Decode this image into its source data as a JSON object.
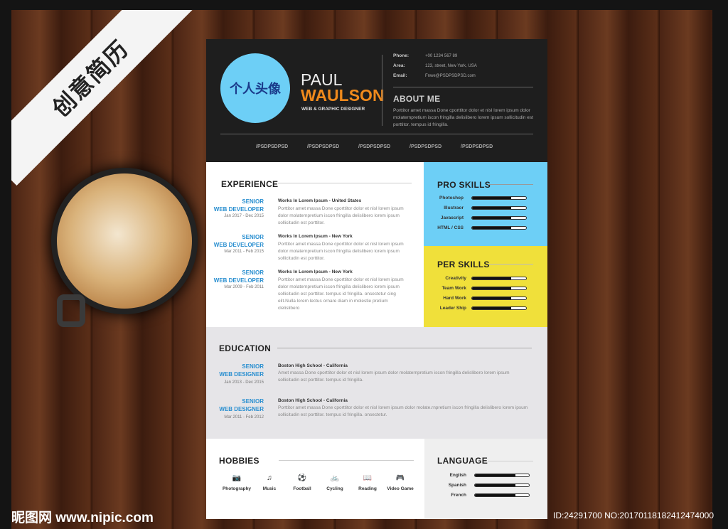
{
  "banner": "创意简历",
  "watermark": "昵图网 www.nipic.com",
  "image_id": "ID:24291700 NO:20170118182412474000",
  "colors": {
    "header": "#1e1e1e",
    "accent_orange": "#f08a1c",
    "accent_blue": "#6dcff6",
    "accent_yellow": "#f0e03a",
    "education_bg": "#e6e5e8"
  },
  "header": {
    "avatar": "个人头像",
    "first_name": "PAUL",
    "last_name": "WAULSON",
    "role": "WEB & GRAPHIC DESIGNER",
    "contacts": [
      {
        "k": "Phone:",
        "v": "+00 1234 567 89"
      },
      {
        "k": "Area:",
        "v": "123, street, New York, USA"
      },
      {
        "k": "Email:",
        "v": "Fnwe@PSDPSDPSD.com"
      }
    ],
    "about_title": "ABOUT ME",
    "about_text": "Porttitor amet massa Done cporttitor dolor et nisl lorem ipsum dolor molaternpretium iscon fringilla delislibero lorem ipsum sollicitudin est porttitor. tempus id fringilla.",
    "social": [
      "/PSDPSDPSD",
      "/PSDPSDPSD",
      "/PSDPSDPSD",
      "/PSDPSDPSD",
      "/PSDPSDPSD"
    ]
  },
  "experience": {
    "title": "EXPERIENCE",
    "items": [
      {
        "p1": "SENIOR",
        "p2": "WEB DEVELOPER",
        "date": "Jan 2017 - Dec 2015",
        "job": "Works In Lorem Ipsum - United States",
        "text": "Porttitor amet massa Done cporttitor dolor et nisl lorem ipsum dolor molaternpretium iscon fringilla delislibero lorem ipsum sollicitudin est porttitor."
      },
      {
        "p1": "SENIOR",
        "p2": "WEB DEVELOPER",
        "date": "Mar 2011 - Feb 2015",
        "job": "Works In Lorem Ipsum - New York",
        "text": "Porttitor amet massa Done cporttitor dolor et nisl lorem ipsum dolor molaternpretium iscon fringilla delislibero lorem ipsum sollicitudin est porttitor."
      },
      {
        "p1": "SENIOR",
        "p2": "WEB DEVELOPER",
        "date": "Mar 2009 - Feb 2011",
        "job": "Works In Lorem Ipsum - New York",
        "text": "Porttitor amet massa Done cporttitor dolor et nisl lorem ipsum dolor molaternpretium iscon fringilla delislibero lorem ipsum sollicitudin est porttitor. tempus id fringilla. onsectetur cing elit.Nulla lorem lectus ornare diam in molestie pretium clelislibero"
      }
    ]
  },
  "pro_skills": {
    "title": "PRO SKILLS",
    "items": [
      {
        "name": "Photoshop",
        "level": 0.72
      },
      {
        "name": "Illustraor",
        "level": 0.72
      },
      {
        "name": "Javascript",
        "level": 0.72
      },
      {
        "name": "HTML / CSS",
        "level": 0.72
      }
    ]
  },
  "per_skills": {
    "title": "PER SKILLS",
    "items": [
      {
        "name": "Creativity",
        "level": 0.72
      },
      {
        "name": "Team Work",
        "level": 0.72
      },
      {
        "name": "Hard Work",
        "level": 0.72
      },
      {
        "name": "Leader Ship",
        "level": 0.72
      }
    ]
  },
  "education": {
    "title": "EDUCATION",
    "items": [
      {
        "p1": "SENIOR",
        "p2": "WEB DESIGNER",
        "date": "Jan 2013 - Dec 2015",
        "job": "Boston High School - California",
        "text": "Amet massa Done cporttitor dolor et nisl lorem ipsum dolor molaternpretium iscon fringilla delislibero lorem ipsum sollicitudin est porttitor. tempus id fringilla."
      },
      {
        "p1": "SENIOR",
        "p2": "WEB DESIGNER",
        "date": "Mar 2011 - Feb 2012",
        "job": "Boston High School - California",
        "text": "Porttitor amet massa Done cporttitor dolor et nisl lorem ipsum dolor molate.rnpretium iscon fringilla delislibero lorem ipsum sollicitudin est porttitor. tempus id fringilla. onsectetur."
      }
    ]
  },
  "hobbies": {
    "title": "HOBBIES",
    "items": [
      {
        "icon": "camera-icon",
        "glyph": "📷",
        "label": "Photography"
      },
      {
        "icon": "music-icon",
        "glyph": "♫",
        "label": "Music"
      },
      {
        "icon": "football-icon",
        "glyph": "⚽",
        "label": "Football"
      },
      {
        "icon": "bicycle-icon",
        "glyph": "🚲",
        "label": "Cycling"
      },
      {
        "icon": "book-icon",
        "glyph": "📖",
        "label": "Reading"
      },
      {
        "icon": "gamepad-icon",
        "glyph": "🎮",
        "label": "Video Game"
      }
    ]
  },
  "language": {
    "title": "LANGUAGE",
    "items": [
      {
        "name": "English",
        "level": 0.75
      },
      {
        "name": "Spanish",
        "level": 0.75
      },
      {
        "name": "French",
        "level": 0.75
      }
    ]
  }
}
